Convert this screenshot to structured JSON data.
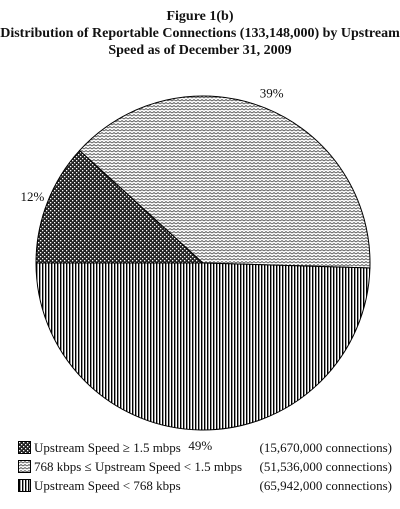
{
  "chart_data": {
    "type": "pie",
    "title": "Figure 1(b)",
    "subtitle": "Distribution of Reportable Connections (133,148,000) by Upstream Speed as of December 31, 2009",
    "slices": [
      {
        "label": "Upstream Speed ≥ 1.5 mbps",
        "value": 15670000,
        "count_text": "(15,670,000 connections)",
        "percent_label": "12%",
        "pattern": "checker"
      },
      {
        "label": "768 kbps ≤ Upstream Speed < 1.5 mbps",
        "value": 51536000,
        "count_text": "(51,536,000 connections)",
        "percent_label": "39%",
        "pattern": "wave"
      },
      {
        "label": "Upstream Speed < 768 kbps",
        "value": 65942000,
        "count_text": "(65,942,000 connections)",
        "percent_label": "49%",
        "pattern": "vertical"
      }
    ],
    "legend": "bottom"
  }
}
